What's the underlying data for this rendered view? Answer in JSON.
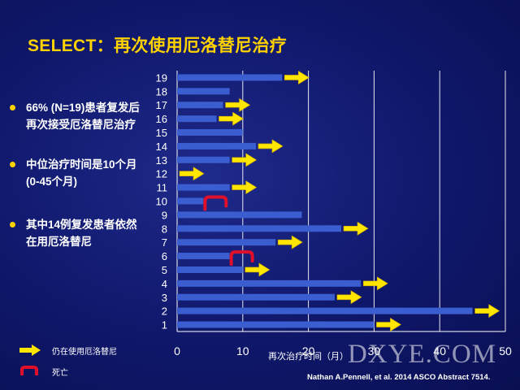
{
  "slide": {
    "title": "SELECT：再次使用厄洛替尼治疗",
    "bullets": [
      "66% (N=19)患者复发后再次接受厄洛替尼治疗",
      "中位治疗时间是10个月(0-45个月)",
      "其中14例复发患者依然在用厄洛替尼"
    ],
    "watermark": "DXYE.COM",
    "citation": "Nathan A.Pennell, et al. 2014 ASCO Abstract 7514."
  },
  "legend": {
    "ongoing_label": "仍在使用厄洛替尼",
    "death_label": "死亡"
  },
  "colors": {
    "background": "#0f176a",
    "title": "#ffd200",
    "bar": "#3a5ed0",
    "arrow": "#ffe600",
    "death_marker": "#e0102a",
    "grid": "#ffffff"
  },
  "chart_data": {
    "type": "bar",
    "orientation": "horizontal",
    "xlabel": "再次治疗时间（月）",
    "ylabel": "",
    "xlim": [
      0,
      50
    ],
    "xticks": [
      0,
      10,
      20,
      30,
      40,
      50
    ],
    "grid": "vertical",
    "categories": [
      "1",
      "2",
      "3",
      "4",
      "5",
      "6",
      "7",
      "8",
      "9",
      "10",
      "11",
      "12",
      "13",
      "14",
      "15",
      "16",
      "17",
      "18",
      "19"
    ],
    "values": [
      30,
      45,
      24,
      28,
      10,
      8,
      15,
      25,
      19,
      4,
      8,
      0,
      8,
      12,
      10,
      6,
      7,
      8,
      16
    ],
    "ongoing": [
      1,
      2,
      3,
      4,
      5,
      7,
      8,
      11,
      12,
      13,
      14,
      16,
      17,
      19
    ],
    "death": [
      6,
      10
    ]
  }
}
